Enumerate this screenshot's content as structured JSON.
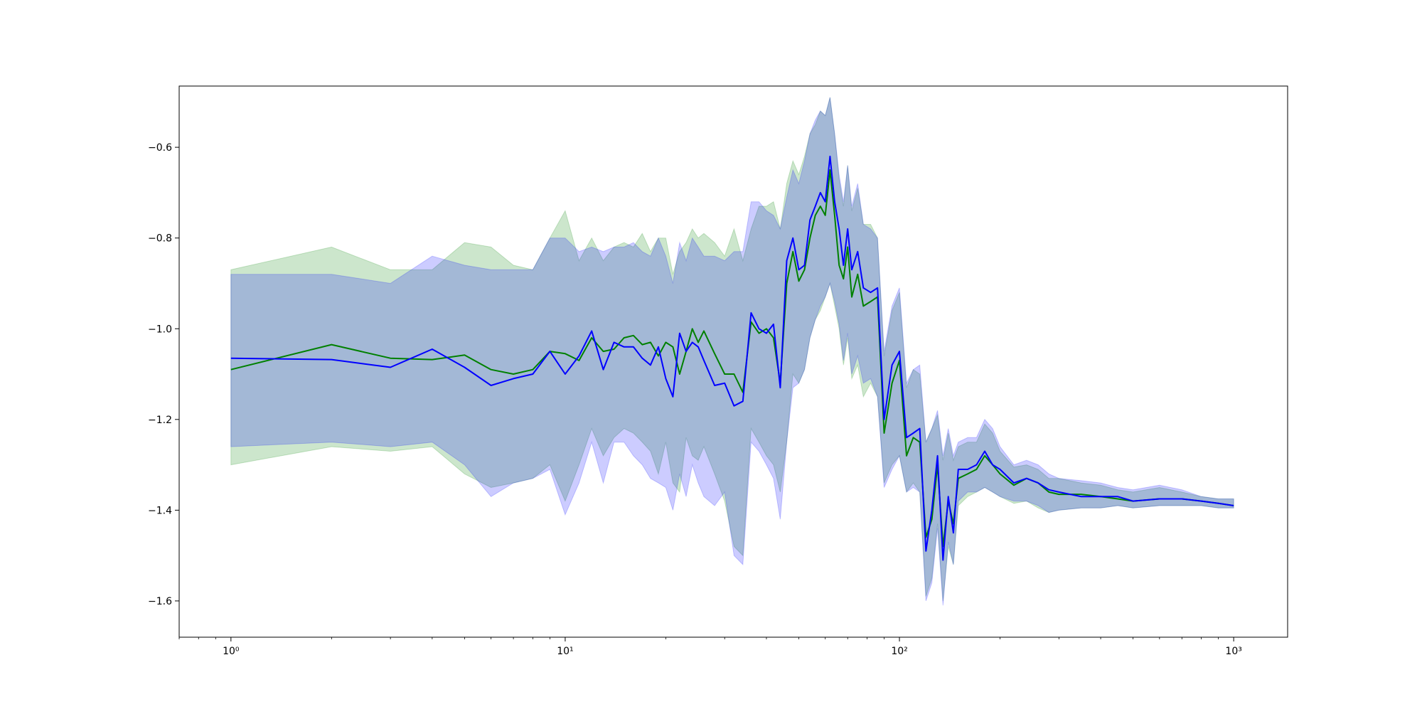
{
  "chart_data": {
    "type": "line",
    "title": "",
    "xlabel": "",
    "ylabel": "",
    "x_scale": "log",
    "xlim": [
      0.7,
      1450
    ],
    "ylim": [
      -1.68,
      -0.465
    ],
    "grid": false,
    "x_ticks": [
      {
        "value": 1,
        "label": "10⁰"
      },
      {
        "value": 10,
        "label": "10¹"
      },
      {
        "value": 100,
        "label": "10²"
      },
      {
        "value": 1000,
        "label": "10³"
      }
    ],
    "y_ticks": [
      {
        "value": -0.6,
        "label": "−0.6"
      },
      {
        "value": -0.8,
        "label": "−0.8"
      },
      {
        "value": -1.0,
        "label": "−1.0"
      },
      {
        "value": -1.2,
        "label": "−1.2"
      },
      {
        "value": -1.4,
        "label": "−1.4"
      },
      {
        "value": -1.6,
        "label": "−1.6"
      }
    ],
    "series": [
      {
        "color": "#008000",
        "band_color": "#008000",
        "band_opacity": 0.2,
        "x": [
          1,
          2,
          3,
          4,
          5,
          6,
          7,
          8,
          9,
          10,
          11,
          12,
          13,
          14,
          15,
          16,
          17,
          18,
          19,
          20,
          21,
          22,
          23,
          24,
          25,
          26,
          28,
          30,
          32,
          34,
          36,
          38,
          40,
          42,
          44,
          46,
          48,
          50,
          52,
          54,
          56,
          58,
          60,
          62,
          64,
          66,
          68,
          70,
          72,
          75,
          78,
          82,
          86,
          90,
          95,
          100,
          105,
          110,
          115,
          120,
          125,
          130,
          135,
          140,
          145,
          150,
          160,
          170,
          180,
          190,
          200,
          220,
          240,
          260,
          280,
          300,
          350,
          400,
          450,
          500,
          600,
          700,
          800,
          900,
          1000
        ],
        "values": [
          -1.09,
          -1.035,
          -1.065,
          -1.068,
          -1.058,
          -1.09,
          -1.1,
          -1.09,
          -1.05,
          -1.055,
          -1.07,
          -1.02,
          -1.05,
          -1.045,
          -1.02,
          -1.015,
          -1.035,
          -1.03,
          -1.06,
          -1.03,
          -1.04,
          -1.1,
          -1.05,
          -1.0,
          -1.03,
          -1.005,
          -1.055,
          -1.1,
          -1.1,
          -1.14,
          -0.985,
          -1.01,
          -1.0,
          -1.02,
          -1.12,
          -0.9,
          -0.83,
          -0.895,
          -0.87,
          -0.8,
          -0.75,
          -0.73,
          -0.75,
          -0.65,
          -0.75,
          -0.86,
          -0.89,
          -0.82,
          -0.93,
          -0.88,
          -0.95,
          -0.94,
          -0.93,
          -1.23,
          -1.12,
          -1.07,
          -1.28,
          -1.24,
          -1.25,
          -1.46,
          -1.42,
          -1.3,
          -1.48,
          -1.38,
          -1.43,
          -1.33,
          -1.32,
          -1.31,
          -1.28,
          -1.3,
          -1.32,
          -1.345,
          -1.33,
          -1.34,
          -1.36,
          -1.365,
          -1.365,
          -1.37,
          -1.375,
          -1.38,
          -1.375,
          -1.375,
          -1.38,
          -1.385,
          -1.39
        ],
        "lower": [
          -1.3,
          -1.26,
          -1.27,
          -1.26,
          -1.32,
          -1.35,
          -1.34,
          -1.33,
          -1.3,
          -1.38,
          -1.3,
          -1.22,
          -1.28,
          -1.24,
          -1.22,
          -1.23,
          -1.25,
          -1.27,
          -1.32,
          -1.25,
          -1.34,
          -1.36,
          -1.24,
          -1.28,
          -1.29,
          -1.26,
          -1.32,
          -1.38,
          -1.48,
          -1.5,
          -1.22,
          -1.25,
          -1.28,
          -1.3,
          -1.36,
          -1.25,
          -1.1,
          -1.12,
          -1.09,
          -1.02,
          -0.98,
          -0.96,
          -0.93,
          -0.9,
          -0.95,
          -1.0,
          -1.08,
          -1.02,
          -1.11,
          -1.08,
          -1.15,
          -1.12,
          -1.15,
          -1.34,
          -1.3,
          -1.28,
          -1.36,
          -1.34,
          -1.36,
          -1.59,
          -1.55,
          -1.43,
          -1.6,
          -1.48,
          -1.52,
          -1.39,
          -1.37,
          -1.36,
          -1.35,
          -1.36,
          -1.37,
          -1.385,
          -1.38,
          -1.395,
          -1.405,
          -1.4,
          -1.395,
          -1.395,
          -1.39,
          -1.395,
          -1.39,
          -1.39,
          -1.39,
          -1.395,
          -1.395
        ],
        "upper": [
          -0.87,
          -0.82,
          -0.87,
          -0.87,
          -0.81,
          -0.82,
          -0.86,
          -0.87,
          -0.8,
          -0.74,
          -0.85,
          -0.8,
          -0.85,
          -0.82,
          -0.81,
          -0.82,
          -0.79,
          -0.83,
          -0.8,
          -0.8,
          -0.88,
          -0.83,
          -0.81,
          -0.78,
          -0.8,
          -0.79,
          -0.81,
          -0.84,
          -0.78,
          -0.85,
          -0.78,
          -0.73,
          -0.73,
          -0.72,
          -0.78,
          -0.68,
          -0.63,
          -0.66,
          -0.62,
          -0.57,
          -0.55,
          -0.52,
          -0.53,
          -0.49,
          -0.57,
          -0.67,
          -0.73,
          -0.64,
          -0.74,
          -0.69,
          -0.77,
          -0.77,
          -0.8,
          -1.06,
          -0.96,
          -0.92,
          -1.13,
          -1.09,
          -1.1,
          -1.25,
          -1.22,
          -1.19,
          -1.29,
          -1.23,
          -1.29,
          -1.26,
          -1.25,
          -1.25,
          -1.21,
          -1.23,
          -1.27,
          -1.305,
          -1.3,
          -1.31,
          -1.33,
          -1.33,
          -1.34,
          -1.345,
          -1.355,
          -1.36,
          -1.35,
          -1.36,
          -1.37,
          -1.375,
          -1.375
        ]
      },
      {
        "color": "#0000ff",
        "band_color": "#0000ff",
        "band_opacity": 0.2,
        "x": [
          1,
          2,
          3,
          4,
          5,
          6,
          7,
          8,
          9,
          10,
          11,
          12,
          13,
          14,
          15,
          16,
          17,
          18,
          19,
          20,
          21,
          22,
          23,
          24,
          25,
          26,
          28,
          30,
          32,
          34,
          36,
          38,
          40,
          42,
          44,
          46,
          48,
          50,
          52,
          54,
          56,
          58,
          60,
          62,
          64,
          66,
          68,
          70,
          72,
          75,
          78,
          82,
          86,
          90,
          95,
          100,
          105,
          110,
          115,
          120,
          125,
          130,
          135,
          140,
          145,
          150,
          160,
          170,
          180,
          190,
          200,
          220,
          240,
          260,
          280,
          300,
          350,
          400,
          450,
          500,
          600,
          700,
          800,
          900,
          1000
        ],
        "values": [
          -1.065,
          -1.068,
          -1.085,
          -1.045,
          -1.085,
          -1.125,
          -1.11,
          -1.1,
          -1.05,
          -1.1,
          -1.06,
          -1.005,
          -1.09,
          -1.03,
          -1.04,
          -1.04,
          -1.065,
          -1.08,
          -1.04,
          -1.11,
          -1.15,
          -1.01,
          -1.05,
          -1.03,
          -1.04,
          -1.07,
          -1.125,
          -1.12,
          -1.17,
          -1.16,
          -0.965,
          -1.0,
          -1.01,
          -0.99,
          -1.13,
          -0.85,
          -0.8,
          -0.87,
          -0.86,
          -0.76,
          -0.73,
          -0.7,
          -0.72,
          -0.62,
          -0.72,
          -0.78,
          -0.86,
          -0.78,
          -0.87,
          -0.83,
          -0.91,
          -0.92,
          -0.91,
          -1.2,
          -1.08,
          -1.05,
          -1.24,
          -1.23,
          -1.22,
          -1.49,
          -1.4,
          -1.28,
          -1.51,
          -1.37,
          -1.45,
          -1.31,
          -1.31,
          -1.3,
          -1.27,
          -1.3,
          -1.31,
          -1.34,
          -1.33,
          -1.34,
          -1.355,
          -1.36,
          -1.37,
          -1.37,
          -1.37,
          -1.38,
          -1.375,
          -1.375,
          -1.38,
          -1.385,
          -1.39
        ],
        "lower": [
          -1.26,
          -1.25,
          -1.26,
          -1.25,
          -1.3,
          -1.37,
          -1.34,
          -1.33,
          -1.31,
          -1.41,
          -1.34,
          -1.25,
          -1.34,
          -1.25,
          -1.25,
          -1.28,
          -1.3,
          -1.33,
          -1.34,
          -1.35,
          -1.4,
          -1.32,
          -1.37,
          -1.3,
          -1.34,
          -1.37,
          -1.39,
          -1.36,
          -1.5,
          -1.52,
          -1.25,
          -1.27,
          -1.3,
          -1.33,
          -1.42,
          -1.25,
          -1.13,
          -1.12,
          -1.09,
          -1.02,
          -0.98,
          -0.95,
          -0.93,
          -0.9,
          -0.94,
          -0.99,
          -1.07,
          -1.01,
          -1.1,
          -1.06,
          -1.12,
          -1.11,
          -1.15,
          -1.35,
          -1.31,
          -1.28,
          -1.36,
          -1.35,
          -1.36,
          -1.6,
          -1.56,
          -1.44,
          -1.61,
          -1.47,
          -1.52,
          -1.38,
          -1.36,
          -1.36,
          -1.35,
          -1.36,
          -1.37,
          -1.38,
          -1.38,
          -1.39,
          -1.405,
          -1.4,
          -1.395,
          -1.395,
          -1.39,
          -1.395,
          -1.39,
          -1.39,
          -1.39,
          -1.395,
          -1.395
        ],
        "upper": [
          -0.88,
          -0.88,
          -0.9,
          -0.84,
          -0.86,
          -0.87,
          -0.87,
          -0.87,
          -0.8,
          -0.8,
          -0.83,
          -0.82,
          -0.83,
          -0.82,
          -0.82,
          -0.81,
          -0.83,
          -0.84,
          -0.8,
          -0.84,
          -0.9,
          -0.81,
          -0.85,
          -0.8,
          -0.82,
          -0.84,
          -0.84,
          -0.85,
          -0.83,
          -0.83,
          -0.72,
          -0.72,
          -0.74,
          -0.75,
          -0.78,
          -0.71,
          -0.65,
          -0.68,
          -0.63,
          -0.57,
          -0.54,
          -0.52,
          -0.53,
          -0.49,
          -0.57,
          -0.66,
          -0.72,
          -0.64,
          -0.73,
          -0.68,
          -0.77,
          -0.78,
          -0.8,
          -1.05,
          -0.95,
          -0.91,
          -1.12,
          -1.09,
          -1.08,
          -1.25,
          -1.22,
          -1.18,
          -1.28,
          -1.22,
          -1.28,
          -1.25,
          -1.24,
          -1.24,
          -1.2,
          -1.22,
          -1.26,
          -1.3,
          -1.29,
          -1.3,
          -1.32,
          -1.33,
          -1.335,
          -1.34,
          -1.35,
          -1.355,
          -1.345,
          -1.355,
          -1.37,
          -1.375,
          -1.375
        ]
      }
    ]
  }
}
